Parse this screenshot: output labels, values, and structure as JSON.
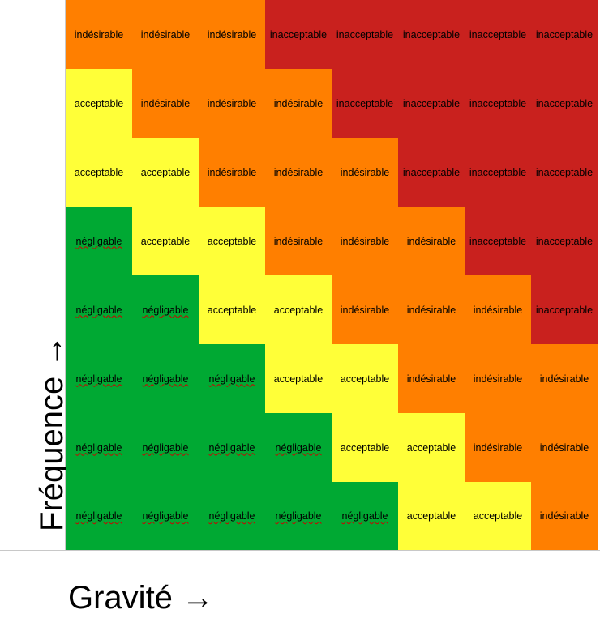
{
  "axes": {
    "y_label": "Fréquence →",
    "x_label": "Gravité →"
  },
  "colors": {
    "négligable": "#00a933",
    "acceptable": "#ffff38",
    "indésirable": "#ff7f00",
    "inacceptable": "#c9211e"
  },
  "matrix": {
    "rows": [
      [
        "indésirable",
        "indésirable",
        "indésirable",
        "inacceptable",
        "inacceptable",
        "inacceptable",
        "inacceptable",
        "inacceptable"
      ],
      [
        "acceptable",
        "indésirable",
        "indésirable",
        "indésirable",
        "inacceptable",
        "inacceptable",
        "inacceptable",
        "inacceptable"
      ],
      [
        "acceptable",
        "acceptable",
        "indésirable",
        "indésirable",
        "indésirable",
        "inacceptable",
        "inacceptable",
        "inacceptable"
      ],
      [
        "négligable",
        "acceptable",
        "acceptable",
        "indésirable",
        "indésirable",
        "indésirable",
        "inacceptable",
        "inacceptable"
      ],
      [
        "négligable",
        "négligable",
        "acceptable",
        "acceptable",
        "indésirable",
        "indésirable",
        "indésirable",
        "inacceptable"
      ],
      [
        "négligable",
        "négligable",
        "négligable",
        "acceptable",
        "acceptable",
        "indésirable",
        "indésirable",
        "indésirable"
      ],
      [
        "négligable",
        "négligable",
        "négligable",
        "négligable",
        "acceptable",
        "acceptable",
        "indésirable",
        "indésirable"
      ],
      [
        "négligable",
        "négligable",
        "négligable",
        "négligable",
        "négligable",
        "acceptable",
        "acceptable",
        "indésirable"
      ]
    ]
  }
}
